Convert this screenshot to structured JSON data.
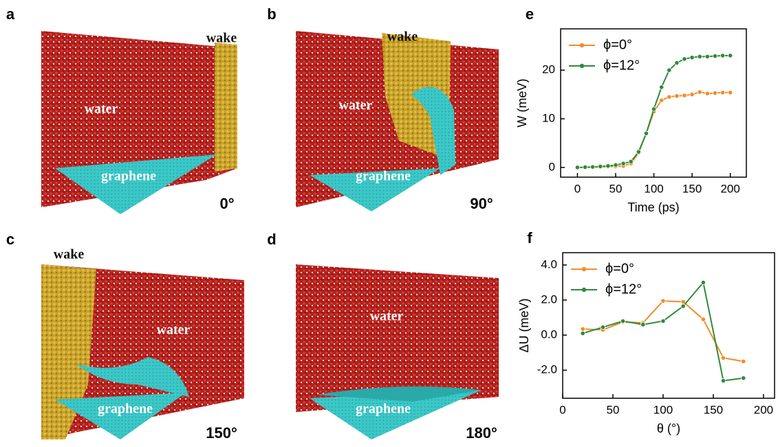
{
  "panels": [
    {
      "letter": "a",
      "angle": "0°",
      "water": "water",
      "graphene": "graphene",
      "wake": "wake"
    },
    {
      "letter": "b",
      "angle": "90°",
      "water": "water",
      "graphene": "graphene",
      "wake": "wake"
    },
    {
      "letter": "c",
      "angle": "150°",
      "water": "water",
      "graphene": "graphene",
      "wake": "wake"
    },
    {
      "letter": "d",
      "angle": "180°",
      "water": "water",
      "graphene": "graphene"
    }
  ],
  "chart_data": [
    {
      "type": "line",
      "panel_label": "e",
      "x_label": "Time (ps)",
      "y_label": "W (meV)",
      "legend": "upper left",
      "x": [
        0,
        10,
        20,
        30,
        40,
        50,
        60,
        70,
        80,
        90,
        100,
        110,
        120,
        130,
        140,
        150,
        160,
        170,
        180,
        190,
        200
      ],
      "series": [
        {
          "name": "ϕ=0°",
          "color": "#f28c28",
          "values": [
            0,
            0,
            0.05,
            0.1,
            0.15,
            0.2,
            0.3,
            0.8,
            3,
            7,
            11.5,
            13.8,
            14.5,
            14.7,
            14.8,
            15,
            15.5,
            15.2,
            15.3,
            15.4,
            15.4
          ]
        },
        {
          "name": "ϕ=12°",
          "color": "#2e8b3a",
          "values": [
            0,
            0.05,
            0.1,
            0.2,
            0.3,
            0.5,
            0.8,
            1.2,
            3.2,
            7,
            12,
            16.5,
            20,
            21.5,
            22.3,
            22.6,
            22.8,
            22.8,
            22.9,
            23,
            23
          ]
        }
      ],
      "xlim": [
        -22,
        221
      ],
      "xticks": [
        0,
        50,
        100,
        150,
        200
      ],
      "ylim": [
        -2,
        28.5
      ],
      "yticks": [
        0,
        10,
        20
      ]
    },
    {
      "type": "line",
      "panel_label": "f",
      "x_label": "θ (°)",
      "y_label": "ΔU (meV)",
      "legend": "upper left",
      "x": [
        20,
        40,
        60,
        80,
        100,
        120,
        140,
        160,
        180
      ],
      "series": [
        {
          "name": "ϕ=0°",
          "color": "#f28c28",
          "values": [
            0.35,
            0.3,
            0.75,
            0.7,
            1.95,
            1.9,
            0.9,
            -1.3,
            -1.5
          ]
        },
        {
          "name": "ϕ=12°",
          "color": "#2e8b3a",
          "values": [
            0.1,
            0.45,
            0.8,
            0.6,
            0.8,
            1.65,
            3.0,
            -2.6,
            -2.45
          ]
        }
      ],
      "xlim": [
        0,
        211
      ],
      "xticks": [
        0,
        50,
        100,
        150,
        200
      ],
      "ylim": [
        -3.6,
        4.7
      ],
      "yticks": [
        {
          "value": 4,
          "label": "4.0"
        },
        {
          "value": 2,
          "label": "2.0"
        },
        {
          "value": 0,
          "label": "0.0"
        },
        {
          "value": -2,
          "label": "-2.0"
        }
      ]
    }
  ]
}
